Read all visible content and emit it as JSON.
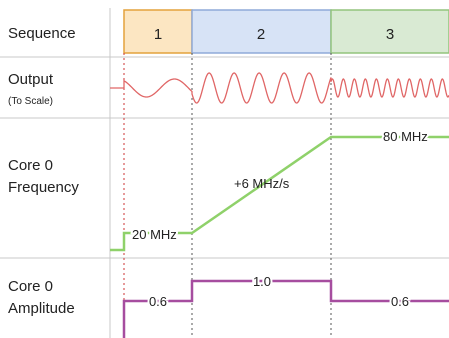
{
  "rows": {
    "sequence": {
      "label": "Sequence"
    },
    "output": {
      "label": "Output",
      "sublabel": "(To Scale)"
    },
    "frequency": {
      "label_line1": "Core 0",
      "label_line2": "Frequency"
    },
    "amplitude": {
      "label_line1": "Core 0",
      "label_line2": "Amplitude"
    }
  },
  "sequence_steps": [
    {
      "label": "1",
      "fill": "#fce6c2",
      "stroke": "#e3a23c"
    },
    {
      "label": "2",
      "fill": "#d7e3f6",
      "stroke": "#8faad8"
    },
    {
      "label": "3",
      "fill": "#d9ead3",
      "stroke": "#93c47d"
    }
  ],
  "frequency_annotations": {
    "start": "20 MHz",
    "ramp": "+6 MHz/s",
    "end": "80 MHz"
  },
  "amplitude_annotations": {
    "step1": "0.6",
    "step2": "1.0",
    "step3": "0.6"
  },
  "colors": {
    "output_wave": "#e06666",
    "frequency_line": "#8fd16a",
    "amplitude_line": "#a64d9f",
    "grid": "#c9c9c9",
    "divider_dotted_1": "#cc3333",
    "divider_dotted_other": "#555555"
  }
}
